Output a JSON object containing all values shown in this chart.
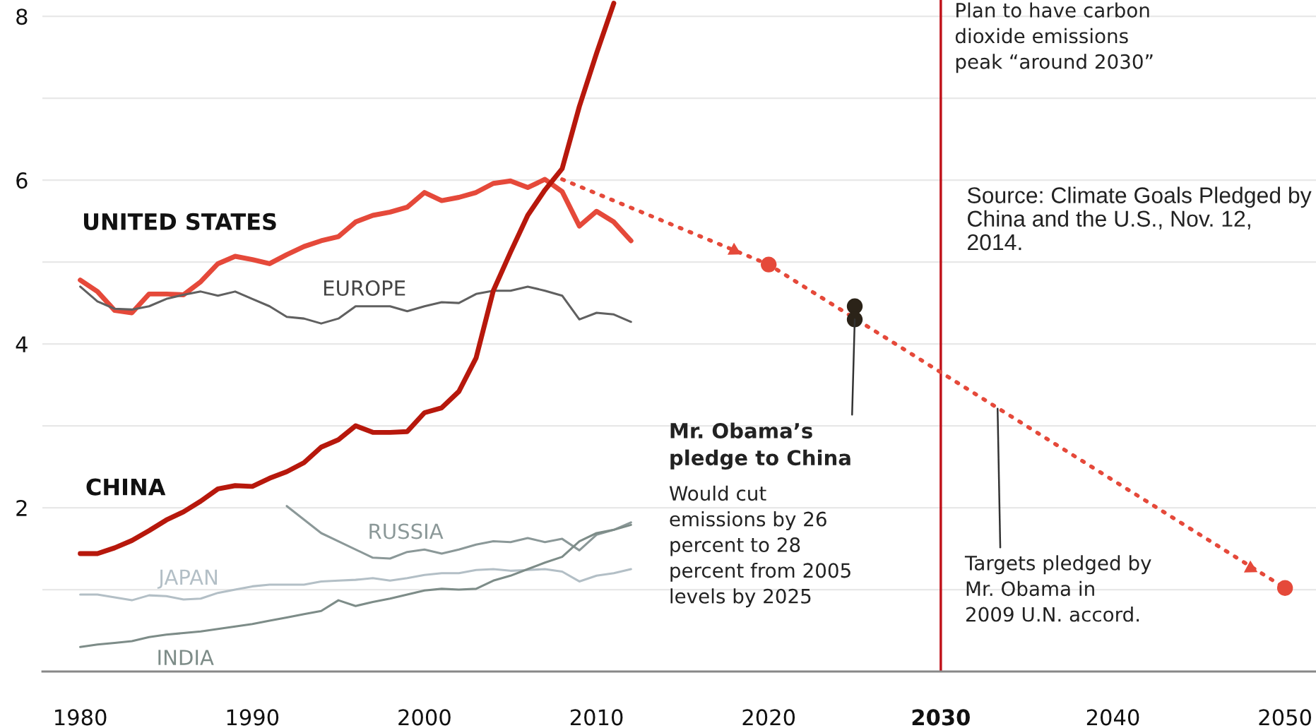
{
  "chart_data": {
    "type": "line",
    "xlim": [
      1977.8,
      2051.8
    ],
    "ylim": [
      0,
      8.2
    ],
    "xticks": [
      1980,
      1990,
      2000,
      2010,
      2020,
      2030,
      2040,
      2050
    ],
    "yticks": [
      {
        "value": 1,
        "label": null
      },
      2,
      {
        "value": 3,
        "label": null
      },
      4,
      {
        "value": 5,
        "label": null
      },
      6,
      {
        "value": 7,
        "label": null
      },
      8
    ],
    "grid": "y",
    "legend": false,
    "series": [
      {
        "name": "UNITED STATES",
        "color": "#e5493a",
        "x": [
          1980,
          1981,
          1982,
          1983,
          1984,
          1985,
          1986,
          1987,
          1988,
          1989,
          1990,
          1991,
          1992,
          1993,
          1994,
          1995,
          1996,
          1997,
          1998,
          1999,
          2000,
          2001,
          2002,
          2003,
          2004,
          2005,
          2006,
          2007,
          2008,
          2009,
          2010,
          2011,
          2012
        ],
        "values": [
          4.78,
          4.64,
          4.41,
          4.38,
          4.61,
          4.61,
          4.6,
          4.76,
          4.98,
          5.07,
          5.03,
          4.98,
          5.09,
          5.19,
          5.26,
          5.31,
          5.49,
          5.57,
          5.61,
          5.67,
          5.85,
          5.75,
          5.79,
          5.85,
          5.96,
          5.99,
          5.91,
          6.01,
          5.86,
          5.44,
          5.62,
          5.49,
          5.26
        ]
      },
      {
        "name": "EUROPE",
        "color": "#606060",
        "x": [
          1980,
          1981,
          1982,
          1983,
          1984,
          1985,
          1986,
          1987,
          1988,
          1989,
          1990,
          1991,
          1992,
          1993,
          1994,
          1995,
          1996,
          1997,
          1998,
          1999,
          2000,
          2001,
          2002,
          2003,
          2004,
          2005,
          2006,
          2007,
          2008,
          2009,
          2010,
          2011,
          2012
        ],
        "values": [
          4.7,
          4.52,
          4.43,
          4.42,
          4.46,
          4.55,
          4.6,
          4.64,
          4.59,
          4.64,
          4.55,
          4.46,
          4.33,
          4.31,
          4.25,
          4.31,
          4.46,
          4.46,
          4.46,
          4.4,
          4.46,
          4.51,
          4.5,
          4.61,
          4.65,
          4.65,
          4.7,
          4.65,
          4.59,
          4.3,
          4.38,
          4.36,
          4.27
        ]
      },
      {
        "name": "CHINA",
        "color": "#b7180c",
        "x": [
          1980,
          1981,
          1982,
          1983,
          1984,
          1985,
          1986,
          1987,
          1988,
          1989,
          1990,
          1991,
          1992,
          1993,
          1994,
          1995,
          1996,
          1997,
          1998,
          1999,
          2000,
          2001,
          2002,
          2003,
          2004,
          2005,
          2006,
          2007,
          2008,
          2009,
          2010,
          2011
        ],
        "values": [
          1.44,
          1.44,
          1.51,
          1.6,
          1.72,
          1.85,
          1.95,
          2.08,
          2.23,
          2.27,
          2.26,
          2.36,
          2.44,
          2.55,
          2.74,
          2.83,
          3.0,
          2.92,
          2.92,
          2.93,
          3.16,
          3.22,
          3.42,
          3.83,
          4.65,
          5.12,
          5.57,
          5.88,
          6.14,
          6.9,
          7.55,
          8.16
        ]
      },
      {
        "name": "RUSSIA",
        "color": "#8b9898",
        "x": [
          1992,
          1994,
          1995,
          1997,
          1998,
          1999,
          2000,
          2001,
          2002,
          2003,
          2004,
          2005,
          2006,
          2007,
          2008,
          2009,
          2010,
          2011,
          2012
        ],
        "values": [
          2.02,
          1.69,
          1.59,
          1.39,
          1.38,
          1.46,
          1.49,
          1.44,
          1.49,
          1.55,
          1.59,
          1.58,
          1.63,
          1.58,
          1.62,
          1.48,
          1.67,
          1.73,
          1.82
        ]
      },
      {
        "name": "JAPAN",
        "color": "#b3bfc6",
        "x": [
          1980,
          1981,
          1983,
          1984,
          1985,
          1986,
          1987,
          1988,
          1989,
          1990,
          1991,
          1992,
          1993,
          1994,
          1995,
          1996,
          1997,
          1998,
          1999,
          2000,
          2001,
          2002,
          2003,
          2004,
          2005,
          2006,
          2007,
          2008,
          2009,
          2010,
          2011,
          2012
        ],
        "values": [
          0.94,
          0.94,
          0.87,
          0.93,
          0.92,
          0.88,
          0.89,
          0.96,
          1.0,
          1.04,
          1.06,
          1.06,
          1.06,
          1.1,
          1.11,
          1.12,
          1.14,
          1.11,
          1.14,
          1.18,
          1.2,
          1.2,
          1.24,
          1.25,
          1.23,
          1.24,
          1.25,
          1.22,
          1.1,
          1.17,
          1.2,
          1.25
        ]
      },
      {
        "name": "INDIA",
        "color": "#7d8c88",
        "x": [
          1980,
          1981,
          1982,
          1983,
          1984,
          1985,
          1986,
          1987,
          1988,
          1989,
          1990,
          1991,
          1992,
          1993,
          1994,
          1995,
          1996,
          1997,
          1998,
          1999,
          2000,
          2001,
          2002,
          2003,
          2004,
          2005,
          2006,
          2007,
          2008,
          2009,
          2010,
          2011,
          2012
        ],
        "values": [
          0.3,
          0.33,
          0.35,
          0.37,
          0.42,
          0.45,
          0.47,
          0.49,
          0.52,
          0.55,
          0.58,
          0.62,
          0.66,
          0.7,
          0.74,
          0.87,
          0.8,
          0.85,
          0.89,
          0.94,
          0.99,
          1.01,
          1.0,
          1.01,
          1.11,
          1.17,
          1.25,
          1.33,
          1.4,
          1.59,
          1.69,
          1.73,
          1.79
        ]
      },
      {
        "color": "#e5493a",
        "line_style": "dotted",
        "x": [
          2008,
          2020,
          2050
        ],
        "values": [
          6.01,
          4.97,
          1.02
        ]
      },
      {
        "type": "scatter",
        "marker": "triangle",
        "color": "#e5493a",
        "x": [
          2018,
          2048
        ],
        "values": [
          5.14,
          1.26
        ]
      },
      {
        "type": "scatter",
        "marker": "circle",
        "color": "#e5493a",
        "x": [
          2020,
          2050
        ],
        "values": [
          4.97,
          1.02
        ]
      },
      {
        "type": "scatter",
        "marker": "circle",
        "color": "#2b2318",
        "x": [
          2025,
          2025
        ],
        "values": [
          4.46,
          4.3
        ]
      }
    ],
    "ref_lines": [
      {
        "axis": "x",
        "value": 2030,
        "color": "#c0121a",
        "label": "Plan to have carbon\ndioxide emissions\npeak “around 2030”"
      }
    ],
    "annotations": [
      {
        "text": "Mr. Obama’s\npledge to China",
        "x": 2025,
        "y": 4.3
      },
      "Would cut\nemissions by 26\npercent to 28\npercent from 2005\nlevels by 2025",
      {
        "text": "Targets pledged by\nMr. Obama in\n2009 U.N. accord.",
        "x": 2033.3,
        "y": 3.21
      },
      "Source: Climate Goals Pledged by\nChina and the U.S., Nov. 12,\n2014."
    ]
  }
}
